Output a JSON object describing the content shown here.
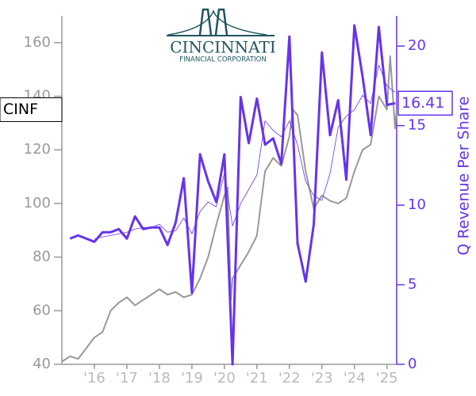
{
  "chart_data": {
    "type": "line",
    "logo": {
      "name": "CINCINNATI",
      "subtitle": "FINANCIAL CORPORATION"
    },
    "ticker": "CINF",
    "y2_label": "Q Revenue Per Share",
    "last_value": 16.41,
    "xlim": [
      2015,
      2025.3
    ],
    "xticks": [
      {
        "value": 2016,
        "label": "'16"
      },
      {
        "value": 2017,
        "label": "'17"
      },
      {
        "value": 2018,
        "label": "'18"
      },
      {
        "value": 2019,
        "label": "'19"
      },
      {
        "value": 2020,
        "label": "'20"
      },
      {
        "value": 2021,
        "label": "'21"
      },
      {
        "value": 2022,
        "label": "'22"
      },
      {
        "value": 2023,
        "label": "'23"
      },
      {
        "value": 2024,
        "label": "'24"
      },
      {
        "value": 2025,
        "label": "'25"
      }
    ],
    "ylim": [
      40,
      170
    ],
    "yticks": [
      40,
      60,
      80,
      100,
      120,
      140,
      160
    ],
    "y2lim": [
      0,
      21.9
    ],
    "y2ticks": [
      0,
      5,
      10,
      15,
      20
    ],
    "price": {
      "color": "#999999",
      "x": [
        2015.0,
        2015.25,
        2015.5,
        2015.75,
        2016.0,
        2016.25,
        2016.5,
        2016.75,
        2017.0,
        2017.25,
        2017.5,
        2017.75,
        2018.0,
        2018.25,
        2018.5,
        2018.75,
        2019.0,
        2019.25,
        2019.5,
        2019.75,
        2020.0,
        2020.1,
        2020.2,
        2020.25,
        2020.5,
        2020.75,
        2021.0,
        2021.25,
        2021.5,
        2021.75,
        2022.0,
        2022.1,
        2022.25,
        2022.5,
        2022.75,
        2023.0,
        2023.25,
        2023.5,
        2023.75,
        2024.0,
        2024.25,
        2024.5,
        2024.75,
        2025.0,
        2025.1,
        2025.25,
        2025.3
      ],
      "values": [
        41,
        43,
        42,
        46,
        50,
        52,
        60,
        63,
        65,
        62,
        64,
        66,
        68,
        66,
        67,
        65,
        66,
        72,
        80,
        92,
        103,
        106,
        64,
        72,
        77,
        82,
        88,
        112,
        117,
        114,
        125,
        135,
        133,
        112,
        98,
        103,
        101,
        100,
        102,
        112,
        120,
        122,
        140,
        135,
        155,
        128,
        135
      ]
    },
    "x": [
      2015.25,
      2015.5,
      2015.75,
      2016.0,
      2016.25,
      2016.5,
      2016.75,
      2017.0,
      2017.25,
      2017.5,
      2017.75,
      2018.0,
      2018.25,
      2018.5,
      2018.75,
      2019.0,
      2019.25,
      2019.5,
      2019.75,
      2020.0,
      2020.25,
      2020.5,
      2020.75,
      2021.0,
      2021.25,
      2021.5,
      2021.75,
      2022.0,
      2022.25,
      2022.5,
      2022.75,
      2023.0,
      2023.25,
      2023.5,
      2023.75,
      2024.0,
      2024.25,
      2024.5,
      2024.75,
      2025.0,
      2025.25
    ],
    "series": [
      {
        "color": "#6633ee",
        "axis": "y2",
        "values": [
          7.9,
          8.1,
          7.9,
          7.7,
          8.3,
          8.3,
          8.5,
          7.9,
          9.3,
          8.5,
          8.6,
          8.6,
          7.5,
          8.9,
          11.7,
          4.5,
          13.2,
          11.5,
          10.2,
          13.2,
          0,
          16.8,
          13.9,
          16.7,
          13.8,
          14.2,
          12.6,
          20.6,
          7.6,
          5.2,
          8.8,
          19.6,
          14.4,
          16.6,
          11.6,
          21.3,
          18.1,
          14.4,
          21.2,
          16.3,
          16.41
        ]
      },
      {
        "color": "#6633ee",
        "axis": "y2",
        "values": [
          null,
          null,
          null,
          7.9,
          8.0,
          8.1,
          8.2,
          8.3,
          8.5,
          8.6,
          8.6,
          8.8,
          8.3,
          8.4,
          9.2,
          8.2,
          9.6,
          10.2,
          9.9,
          12.0,
          8.7,
          10.1,
          11.0,
          11.9,
          15.3,
          14.7,
          14.3,
          15.3,
          13.8,
          11.5,
          10.6,
          10.3,
          12.0,
          14.9,
          15.6,
          16.0,
          16.9,
          16.4,
          18.8,
          17.5,
          17.1
        ]
      }
    ]
  }
}
